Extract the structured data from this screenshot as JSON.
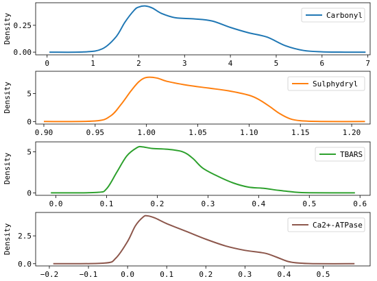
{
  "chart_data": [
    {
      "type": "line",
      "ylabel": "Density",
      "xlim": [
        -0.25,
        7.05
      ],
      "ylim": [
        -0.025,
        0.46
      ],
      "xticks": [
        {
          "v": 0,
          "label": "0"
        },
        {
          "v": 1,
          "label": "1"
        },
        {
          "v": 2,
          "label": "2"
        },
        {
          "v": 3,
          "label": "3"
        },
        {
          "v": 4,
          "label": "4"
        },
        {
          "v": 5,
          "label": "5"
        },
        {
          "v": 6,
          "label": "6"
        },
        {
          "v": 7,
          "label": "7"
        }
      ],
      "yticks": [
        {
          "v": 0,
          "label": "0.00"
        },
        {
          "v": 0.25,
          "label": "0.25"
        }
      ],
      "legend_position": "top-right",
      "series": [
        {
          "name": "Carbonyl",
          "color": "#1f77b4",
          "x": [
            0.05,
            0.8,
            1.2,
            1.5,
            1.7,
            1.9,
            2.0,
            2.15,
            2.3,
            2.5,
            2.8,
            3.2,
            3.6,
            4.0,
            4.4,
            4.8,
            5.2,
            5.6,
            6.0,
            6.5,
            6.95
          ],
          "y": [
            0.0,
            0.002,
            0.03,
            0.14,
            0.28,
            0.39,
            0.42,
            0.43,
            0.41,
            0.36,
            0.32,
            0.31,
            0.29,
            0.23,
            0.18,
            0.14,
            0.06,
            0.015,
            0.003,
            0.0,
            0.0
          ]
        }
      ]
    },
    {
      "type": "line",
      "ylabel": "Density",
      "xlim": [
        0.892,
        1.218
      ],
      "ylim": [
        -0.45,
        9.0
      ],
      "xticks": [
        {
          "v": 0.9,
          "label": "0.90"
        },
        {
          "v": 0.95,
          "label": "0.95"
        },
        {
          "v": 1.0,
          "label": "1.00"
        },
        {
          "v": 1.05,
          "label": "1.05"
        },
        {
          "v": 1.1,
          "label": "1.10"
        },
        {
          "v": 1.15,
          "label": "1.15"
        },
        {
          "v": 1.2,
          "label": "1.20"
        }
      ],
      "yticks": [
        {
          "v": 0,
          "label": "0"
        },
        {
          "v": 5,
          "label": "5"
        }
      ],
      "legend_position": "top-right",
      "series": [
        {
          "name": "Sulphydryl",
          "color": "#ff7f0e",
          "x": [
            0.9,
            0.95,
            0.965,
            0.975,
            0.985,
            0.993,
            1.0,
            1.01,
            1.02,
            1.04,
            1.06,
            1.08,
            1.1,
            1.11,
            1.12,
            1.13,
            1.14,
            1.15,
            1.17,
            1.213
          ],
          "y": [
            0.0,
            0.1,
            1.0,
            3.0,
            5.5,
            7.2,
            7.9,
            7.8,
            7.2,
            6.5,
            6.0,
            5.5,
            4.7,
            3.9,
            2.7,
            1.4,
            0.5,
            0.15,
            0.02,
            0.0
          ]
        }
      ]
    },
    {
      "type": "line",
      "ylabel": "Density",
      "xlim": [
        -0.04,
        0.62
      ],
      "ylim": [
        -0.3,
        6.2
      ],
      "xticks": [
        {
          "v": 0.0,
          "label": "0.0"
        },
        {
          "v": 0.1,
          "label": "0.1"
        },
        {
          "v": 0.2,
          "label": "0.2"
        },
        {
          "v": 0.3,
          "label": "0.3"
        },
        {
          "v": 0.4,
          "label": "0.4"
        },
        {
          "v": 0.5,
          "label": "0.5"
        },
        {
          "v": 0.6,
          "label": "0.6"
        }
      ],
      "yticks": [
        {
          "v": 0,
          "label": "0"
        },
        {
          "v": 5,
          "label": "5"
        }
      ],
      "legend_position": "top-right",
      "series": [
        {
          "name": "TBARS",
          "color": "#2ca02c",
          "x": [
            -0.01,
            0.08,
            0.1,
            0.12,
            0.14,
            0.16,
            0.17,
            0.19,
            0.22,
            0.25,
            0.27,
            0.29,
            0.32,
            0.35,
            0.38,
            0.41,
            0.44,
            0.47,
            0.5,
            0.59
          ],
          "y": [
            0.0,
            0.05,
            0.5,
            2.5,
            4.5,
            5.5,
            5.6,
            5.4,
            5.3,
            5.0,
            4.2,
            3.0,
            2.0,
            1.2,
            0.7,
            0.55,
            0.3,
            0.1,
            0.02,
            0.0
          ]
        }
      ]
    },
    {
      "type": "line",
      "ylabel": "Density",
      "xlim": [
        -0.235,
        0.62
      ],
      "ylim": [
        -0.2,
        4.6
      ],
      "xticks": [
        {
          "v": -0.2,
          "label": "−0.2"
        },
        {
          "v": -0.1,
          "label": "−0.1"
        },
        {
          "v": 0.0,
          "label": "0.0"
        },
        {
          "v": 0.1,
          "label": "0.1"
        },
        {
          "v": 0.2,
          "label": "0.2"
        },
        {
          "v": 0.3,
          "label": "0.3"
        },
        {
          "v": 0.4,
          "label": "0.4"
        },
        {
          "v": 0.5,
          "label": "0.5"
        }
      ],
      "yticks": [
        {
          "v": 0,
          "label": "0.0"
        },
        {
          "v": 2.5,
          "label": "2.5"
        }
      ],
      "legend_position": "top-right",
      "series": [
        {
          "name": "Ca2+-ATPase",
          "color": "#8c564b",
          "x": [
            -0.19,
            -0.06,
            -0.03,
            0.0,
            0.02,
            0.04,
            0.05,
            0.07,
            0.1,
            0.15,
            0.2,
            0.25,
            0.3,
            0.35,
            0.38,
            0.41,
            0.44,
            0.48,
            0.58
          ],
          "y": [
            0.0,
            0.05,
            0.5,
            2.0,
            3.4,
            4.2,
            4.3,
            4.1,
            3.6,
            2.9,
            2.2,
            1.6,
            1.2,
            0.95,
            0.6,
            0.2,
            0.05,
            0.0,
            0.0
          ]
        }
      ]
    }
  ]
}
